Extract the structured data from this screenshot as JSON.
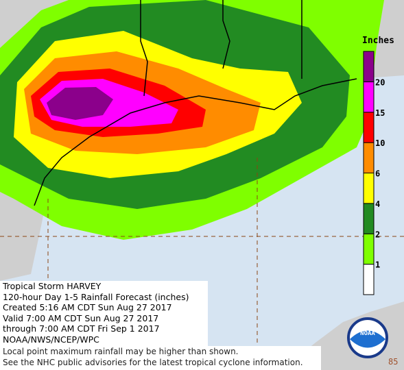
{
  "legend": {
    "title": "Inches",
    "items": [
      {
        "value": 1,
        "color": "#ffffff"
      },
      {
        "value": 2,
        "color": "#7fff00"
      },
      {
        "value": 4,
        "color": "#228b22"
      },
      {
        "value": 6,
        "color": "#ffff00"
      },
      {
        "value": 10,
        "color": "#ff8c00"
      },
      {
        "value": 15,
        "color": "#ff0000"
      },
      {
        "value": 20,
        "color": "#ff00ff"
      },
      {
        "value": null,
        "color": "#8b008b"
      }
    ]
  },
  "caption": {
    "lines": [
      "Tropical Storm HARVEY",
      "120-hour Day 1-5 Rainfall Forecast (inches)",
      "Created 5:16 AM CDT Sun Aug 27 2017",
      "Valid 7:00 AM CDT Sun Aug 27 2017",
      "through 7:00 AM CDT Fri Sep 1 2017",
      "NOAA/NWS/NCEP/WPC"
    ]
  },
  "footnote": {
    "lines": [
      "Local point maximum rainfall may be higher than shown.",
      "See the NHC public advisories for the latest tropical cyclone information."
    ]
  },
  "logo": {
    "text": "NOAA"
  },
  "longitude_label": "85"
}
